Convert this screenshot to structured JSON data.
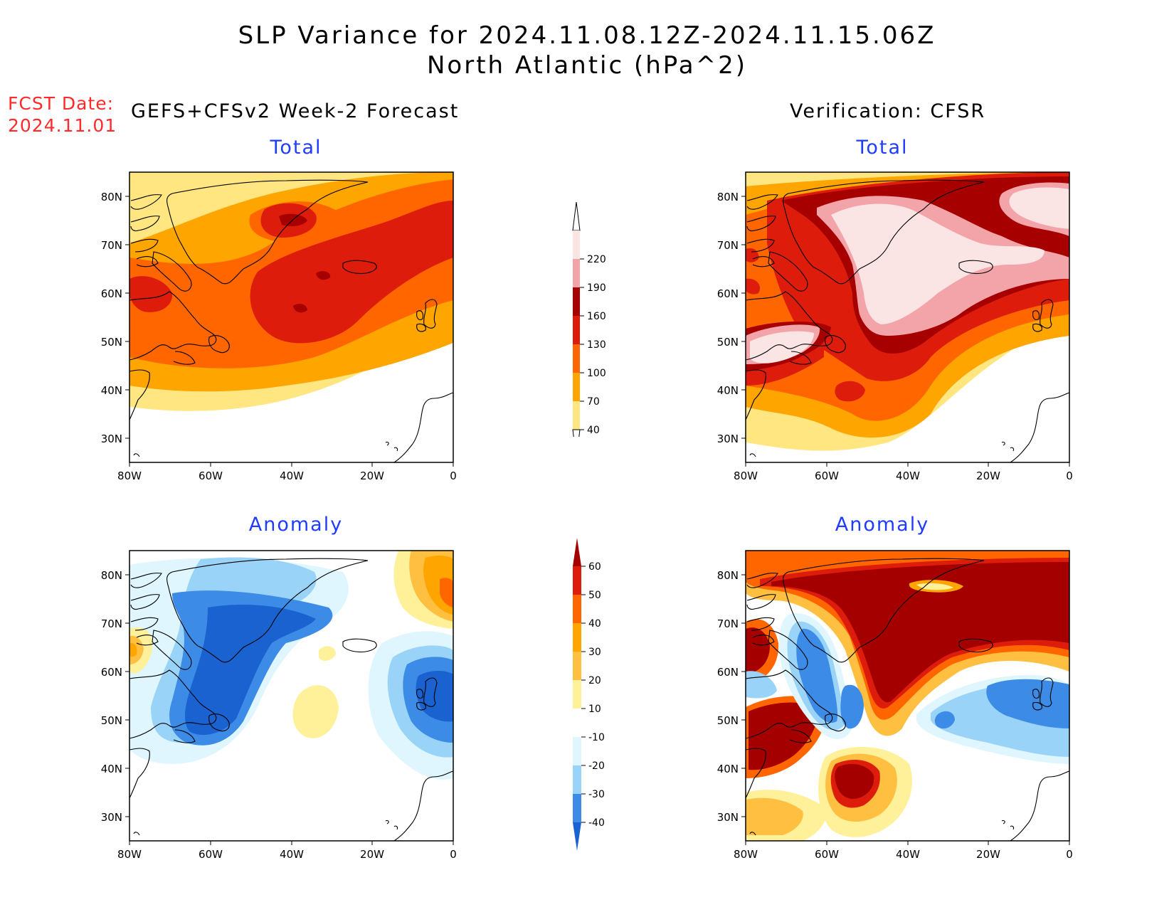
{
  "figure": {
    "title_line1": "SLP Variance for 2024.11.08.12Z-2024.11.15.06Z",
    "title_line2": "North Atlantic (hPa^2)",
    "fcst_label": "FCST Date:",
    "fcst_date": "2024.11.01",
    "left_header": "GEFS+CFSv2 Week-2 Forecast",
    "right_header": "Verification: CFSR"
  },
  "panels": {
    "fc_total": {
      "subtitle": "Total"
    },
    "fc_anom": {
      "subtitle": "Anomaly"
    },
    "ver_total": {
      "subtitle": "Total"
    },
    "ver_anom": {
      "subtitle": "Anomaly"
    }
  },
  "axes": {
    "lat_labels": [
      "80N",
      "70N",
      "60N",
      "50N",
      "40N",
      "30N"
    ],
    "lon_labels": [
      "80W",
      "60W",
      "40W",
      "20W",
      "0"
    ]
  },
  "legend_total": {
    "levels": [
      "220",
      "190",
      "160",
      "130",
      "100",
      "70",
      "40"
    ],
    "colors": [
      "#fbe4e4",
      "#f3a4a8",
      "#a60000",
      "#dd1c0c",
      "#ff6600",
      "#ffa500",
      "#ffe680"
    ]
  },
  "legend_anomaly": {
    "levels": [
      "60",
      "50",
      "40",
      "30",
      "20",
      "10",
      "-10",
      "-20",
      "-30",
      "-40"
    ],
    "colors": [
      "#a50000",
      "#dd1c0c",
      "#ff6600",
      "#ffa500",
      "#ffbf40",
      "#fff09a",
      "#ffffff",
      "#dff6ff",
      "#9ad3f8",
      "#3c8be6",
      "#1a62d0"
    ]
  },
  "chart_data": {
    "type": "heatmap",
    "region": "North Atlantic",
    "lat_range": [
      25,
      85
    ],
    "lon_range": [
      -80,
      0
    ],
    "panels": [
      "GEFS+CFSv2 Week-2 Forecast Total",
      "GEFS+CFSv2 Week-2 Forecast Anomaly",
      "Verification: CFSR Total",
      "Verification: CFSR Anomaly"
    ]
  },
  "colors": {
    "subtitle": "#1f3cff",
    "fcst": "#ff2a2a"
  }
}
